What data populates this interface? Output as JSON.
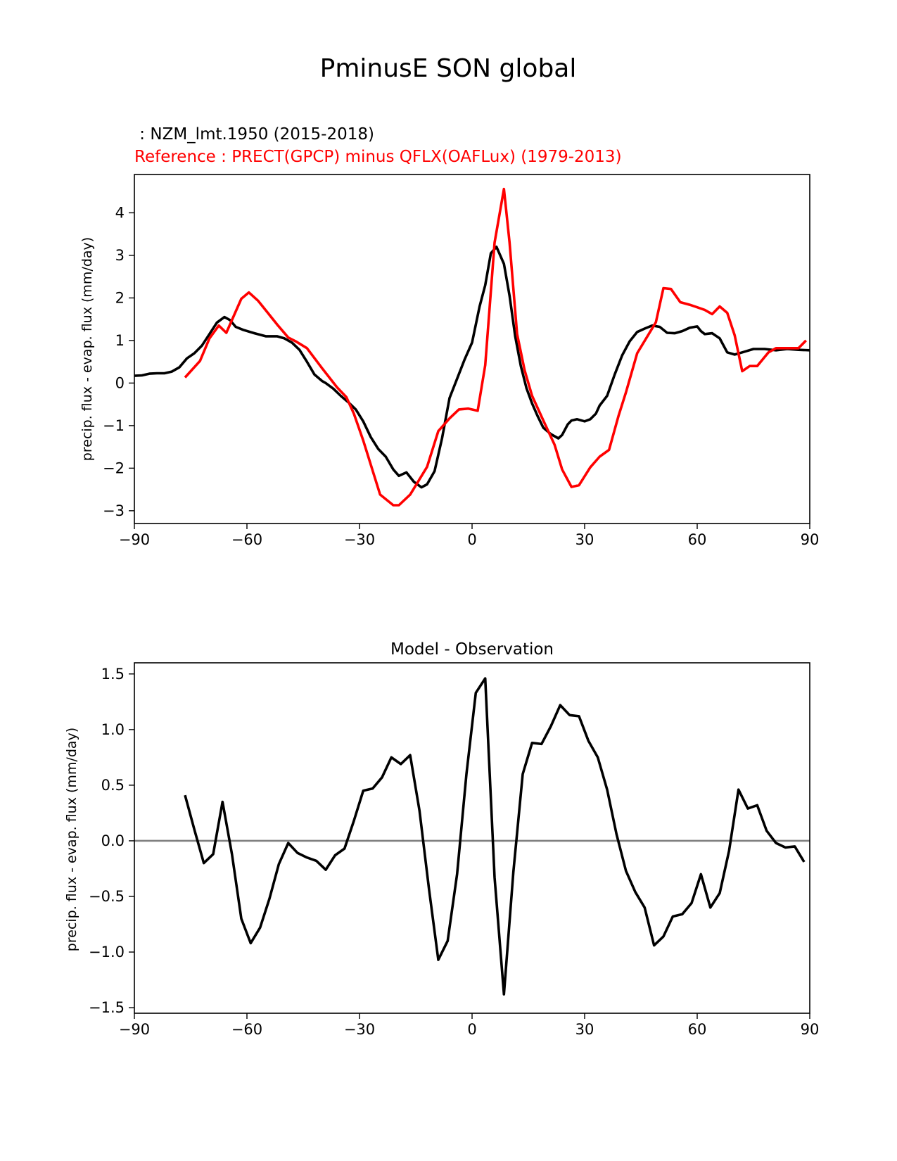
{
  "figure_title": "PminusE SON global",
  "chart_data": [
    {
      "type": "line",
      "title_model": " : NZM_lmt.1950 (2015-2018)",
      "title_reference": "Reference : PRECT(GPCP) minus QFLX(OAFLux) (1979-2013)",
      "xlabel": "",
      "ylabel": "precip. flux - evap. flux (mm/day)",
      "xlim": [
        -90,
        90
      ],
      "ylim": [
        -3.3,
        4.9
      ],
      "xticks": [
        -90,
        -60,
        -30,
        0,
        30,
        60,
        90
      ],
      "xtick_labels": [
        "−90",
        "−60",
        "−30",
        "0",
        "30",
        "60",
        "90"
      ],
      "yticks": [
        -3,
        -2,
        -1,
        0,
        1,
        2,
        3,
        4
      ],
      "ytick_labels": [
        "−3",
        "−2",
        "−1",
        "0",
        "1",
        "2",
        "3",
        "4"
      ],
      "series": [
        {
          "name": "NZM_lmt.1950 (2015-2018)",
          "color": "#000000",
          "x": [
            -90,
            -88,
            -86,
            -84,
            -82,
            -80,
            -78,
            -76,
            -74,
            -72,
            -70,
            -68,
            -66,
            -64.5,
            -63,
            -61,
            -58,
            -55,
            -52,
            -50,
            -48,
            -46,
            -44,
            -42,
            -40,
            -39,
            -37,
            -35,
            -33,
            -31,
            -29,
            -27,
            -25,
            -23,
            -21,
            -19.5,
            -17.5,
            -15.5,
            -13.5,
            -12,
            -10,
            -8,
            -6,
            -4,
            -2,
            0,
            2,
            3.5,
            5,
            6.5,
            8.5,
            10,
            11.5,
            13,
            14.5,
            16,
            17.5,
            19,
            21,
            23,
            24,
            25.5,
            26.5,
            28,
            30,
            31.5,
            33,
            34,
            36,
            38,
            40,
            42,
            44,
            46,
            48,
            50,
            52,
            54,
            56,
            58,
            60,
            61,
            62,
            64,
            66,
            68,
            70,
            72,
            75,
            78,
            81,
            84,
            87,
            90
          ],
          "y": [
            0.17,
            0.18,
            0.22,
            0.23,
            0.23,
            0.27,
            0.37,
            0.58,
            0.7,
            0.88,
            1.15,
            1.42,
            1.55,
            1.48,
            1.32,
            1.25,
            1.17,
            1.1,
            1.1,
            1.05,
            0.95,
            0.78,
            0.5,
            0.2,
            0.05,
            0.0,
            -0.13,
            -0.3,
            -0.45,
            -0.62,
            -0.9,
            -1.27,
            -1.55,
            -1.73,
            -2.03,
            -2.18,
            -2.1,
            -2.32,
            -2.45,
            -2.38,
            -2.07,
            -1.3,
            -0.35,
            0.1,
            0.55,
            0.95,
            1.8,
            2.3,
            3.05,
            3.2,
            2.8,
            2.05,
            1.1,
            0.4,
            -0.12,
            -0.48,
            -0.78,
            -1.05,
            -1.2,
            -1.3,
            -1.22,
            -0.97,
            -0.88,
            -0.85,
            -0.9,
            -0.85,
            -0.72,
            -0.53,
            -0.3,
            0.2,
            0.65,
            0.98,
            1.2,
            1.28,
            1.35,
            1.32,
            1.18,
            1.17,
            1.22,
            1.3,
            1.33,
            1.22,
            1.15,
            1.17,
            1.05,
            0.72,
            0.67,
            0.72,
            0.8,
            0.8,
            0.77,
            0.8,
            0.78,
            0.77
          ]
        },
        {
          "name": "Reference : PRECT(GPCP) minus QFLX(OAFLux)",
          "color": "#ff0000",
          "x": [
            -76.5,
            -72.5,
            -70,
            -67.5,
            -65.5,
            -61.5,
            -59.5,
            -57,
            -52,
            -49,
            -47,
            -44,
            -40,
            -36,
            -33.5,
            -31.5,
            -29,
            -24.5,
            -21,
            -19.5,
            -16.5,
            -12,
            -9,
            -6,
            -3.5,
            -1,
            1.5,
            3.5,
            6,
            8.5,
            10,
            12,
            14,
            16,
            19,
            22,
            24,
            26.5,
            28.5,
            31.5,
            34,
            36.5,
            39,
            41,
            44,
            49,
            51,
            53,
            55.5,
            58,
            60,
            62,
            64,
            66,
            68,
            70,
            72,
            74,
            76,
            79,
            81,
            84,
            87,
            89
          ],
          "y": [
            0.13,
            0.52,
            1.05,
            1.35,
            1.18,
            1.98,
            2.13,
            1.93,
            1.38,
            1.07,
            0.98,
            0.82,
            0.35,
            -0.1,
            -0.33,
            -0.72,
            -1.35,
            -2.62,
            -2.87,
            -2.87,
            -2.62,
            -1.97,
            -1.13,
            -0.83,
            -0.62,
            -0.6,
            -0.65,
            0.42,
            3.3,
            4.56,
            3.3,
            1.15,
            0.3,
            -0.3,
            -0.88,
            -1.45,
            -2.03,
            -2.44,
            -2.4,
            -1.98,
            -1.73,
            -1.57,
            -0.78,
            -0.22,
            0.7,
            1.43,
            2.23,
            2.21,
            1.9,
            1.84,
            1.78,
            1.72,
            1.62,
            1.8,
            1.65,
            1.12,
            0.28,
            0.4,
            0.4,
            0.72,
            0.82,
            0.82,
            0.82,
            1.0
          ]
        }
      ]
    },
    {
      "type": "line",
      "title": "Model - Observation",
      "xlabel": "",
      "ylabel": "precip. flux - evap. flux (mm/day)",
      "xlim": [
        -90,
        90
      ],
      "ylim": [
        -1.55,
        1.6
      ],
      "xticks": [
        -90,
        -60,
        -30,
        0,
        30,
        60,
        90
      ],
      "xtick_labels": [
        "−90",
        "−60",
        "−30",
        "0",
        "30",
        "60",
        "90"
      ],
      "yticks": [
        -1.5,
        -1.0,
        -0.5,
        0.0,
        0.5,
        1.0,
        1.5
      ],
      "ytick_labels": [
        "−1.5",
        "−1.0",
        "−0.5",
        "0.0",
        "0.5",
        "1.0",
        "1.5"
      ],
      "zero_line": true,
      "series": [
        {
          "name": "Model - Observation",
          "color": "#000000",
          "x": [
            -76.5,
            -74,
            -71.5,
            -69,
            -66.5,
            -64,
            -61.5,
            -59,
            -56.5,
            -54,
            -51.5,
            -49,
            -46.5,
            -44,
            -41.5,
            -39,
            -36.5,
            -34,
            -31.5,
            -29,
            -26.5,
            -24,
            -21.5,
            -19,
            -16.5,
            -14,
            -11.5,
            -9,
            -6.5,
            -4,
            -1.5,
            1,
            3.5,
            6,
            8.5,
            11,
            13.5,
            16,
            18.5,
            21,
            23.5,
            26,
            28.5,
            31,
            33.5,
            36,
            38.5,
            41,
            43.5,
            46,
            48.5,
            51,
            53.5,
            56,
            58.5,
            61,
            63.5,
            66,
            68.5,
            71,
            73.5,
            76,
            78.5,
            81,
            83.5,
            86,
            88.5
          ],
          "y": [
            0.41,
            0.1,
            -0.2,
            -0.12,
            0.35,
            -0.12,
            -0.7,
            -0.92,
            -0.78,
            -0.52,
            -0.21,
            -0.02,
            -0.11,
            -0.15,
            -0.18,
            -0.26,
            -0.13,
            -0.07,
            0.18,
            0.45,
            0.47,
            0.57,
            0.75,
            0.69,
            0.77,
            0.27,
            -0.43,
            -1.07,
            -0.9,
            -0.3,
            0.6,
            1.33,
            1.46,
            -0.33,
            -1.38,
            -0.28,
            0.6,
            0.88,
            0.87,
            1.03,
            1.22,
            1.13,
            1.12,
            0.9,
            0.75,
            0.46,
            0.06,
            -0.27,
            -0.46,
            -0.6,
            -0.94,
            -0.86,
            -0.68,
            -0.66,
            -0.56,
            -0.3,
            -0.6,
            -0.47,
            -0.09,
            0.46,
            0.29,
            0.32,
            0.09,
            -0.02,
            -0.06,
            -0.05,
            -0.19
          ]
        }
      ]
    }
  ]
}
